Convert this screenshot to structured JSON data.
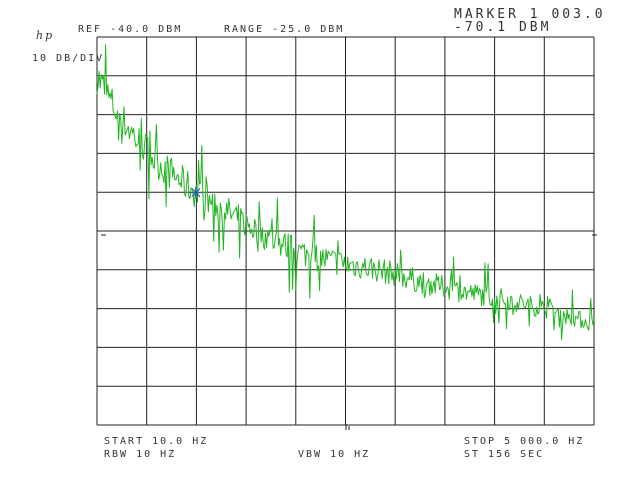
{
  "instrument": {
    "logo": "hp",
    "reference_line": "REF -40.0 DBM",
    "range_line": "RANGE -25.0 DBM",
    "scale_line": "10 DB/DIV",
    "marker_title": "MARKER 1 003.0",
    "marker_value": "-70.1 DBM",
    "start_line": "START 10.0 HZ",
    "stop_line": "STOP 5 000.0 HZ",
    "rbw_line": "RBW 10 HZ",
    "vbw_line": "VBW 10 HZ",
    "sweep_line": "ST 156 SEC"
  },
  "colors": {
    "trace": "#22b422",
    "grid": "#222222",
    "marker": "#2b5fa8",
    "background": "#ffffff"
  },
  "chart_data": {
    "type": "line",
    "x_unit": "HZ",
    "y_unit": "DBM",
    "xlim": [
      10,
      5000
    ],
    "ylim": [
      -130,
      -30
    ],
    "grid": true,
    "marker": {
      "x": 1003,
      "y": -70.1
    },
    "series": [
      {
        "x": [
          10,
          200,
          400,
          600,
          800,
          1000,
          1250,
          1500,
          1750,
          2000,
          2250,
          2500,
          2750,
          3000,
          3250,
          3500,
          3750,
          4000,
          4250,
          4500,
          4750,
          5000
        ],
        "values": [
          -40,
          -49,
          -56,
          -62,
          -66,
          -70,
          -74,
          -78,
          -82,
          -85,
          -87,
          -88.5,
          -89.5,
          -91,
          -93,
          -94.5,
          -96,
          -97,
          -98.5,
          -100,
          -102,
          -104
        ]
      }
    ]
  }
}
